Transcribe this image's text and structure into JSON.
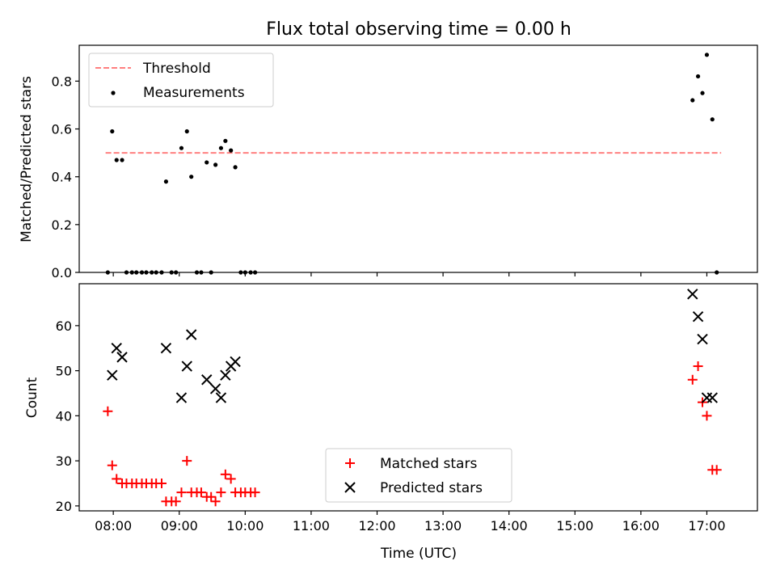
{
  "chart_data": [
    {
      "type": "scatter",
      "title": "Flux total observing time = 0.00 h",
      "xlabel": "",
      "ylabel": "Matched/Predicted stars",
      "xlim": [
        "07:29",
        "17:46"
      ],
      "ylim": [
        0,
        0.95
      ],
      "yticks": [
        0,
        0.2,
        0.4,
        0.6,
        0.8
      ],
      "ytick_labels": [
        "0.0",
        "0.2",
        "0.4",
        "0.6",
        "0.8"
      ],
      "legend_position": "top-left",
      "threshold": {
        "name": "Threshold",
        "value": 0.5,
        "x_range": [
          "07:53",
          "17:13"
        ],
        "color": "#ff7f7f",
        "style": "dashed"
      },
      "series": [
        {
          "name": "Measurements",
          "marker": "dot",
          "color": "#000000",
          "points": [
            [
              "07:55",
              0.0
            ],
            [
              "07:59",
              0.59
            ],
            [
              "08:03",
              0.47
            ],
            [
              "08:08",
              0.47
            ],
            [
              "08:12",
              0.0
            ],
            [
              "08:17",
              0.0
            ],
            [
              "08:21",
              0.0
            ],
            [
              "08:26",
              0.0
            ],
            [
              "08:30",
              0.0
            ],
            [
              "08:35",
              0.0
            ],
            [
              "08:39",
              0.0
            ],
            [
              "08:44",
              0.0
            ],
            [
              "08:48",
              0.38
            ],
            [
              "08:53",
              0.0
            ],
            [
              "08:57",
              0.0
            ],
            [
              "09:02",
              0.52
            ],
            [
              "09:07",
              0.59
            ],
            [
              "09:11",
              0.4
            ],
            [
              "09:16",
              0.0
            ],
            [
              "09:20",
              0.0
            ],
            [
              "09:25",
              0.46
            ],
            [
              "09:29",
              0.0
            ],
            [
              "09:33",
              0.45
            ],
            [
              "09:38",
              0.52
            ],
            [
              "09:42",
              0.55
            ],
            [
              "09:47",
              0.51
            ],
            [
              "09:51",
              0.44
            ],
            [
              "09:56",
              0.0
            ],
            [
              "10:00",
              0.0
            ],
            [
              "10:05",
              0.0
            ],
            [
              "10:09",
              0.0
            ],
            [
              "16:47",
              0.72
            ],
            [
              "16:52",
              0.82
            ],
            [
              "16:56",
              0.75
            ],
            [
              "17:00",
              0.91
            ],
            [
              "17:05",
              0.64
            ],
            [
              "17:09",
              0.0
            ]
          ]
        }
      ]
    },
    {
      "type": "scatter",
      "title": "",
      "xlabel": "Time (UTC)",
      "ylabel": "Count",
      "xlim": [
        "07:29",
        "17:46"
      ],
      "ylim": [
        18.9,
        69.3
      ],
      "yticks": [
        20,
        30,
        40,
        50,
        60
      ],
      "ytick_labels": [
        "20",
        "30",
        "40",
        "50",
        "60"
      ],
      "xticks": [
        "08:00",
        "09:00",
        "10:00",
        "11:00",
        "12:00",
        "13:00",
        "14:00",
        "15:00",
        "16:00",
        "17:00"
      ],
      "xtick_labels": [
        "08:00",
        "09:00",
        "10:00",
        "11:00",
        "12:00",
        "13:00",
        "14:00",
        "15:00",
        "16:00",
        "17:00"
      ],
      "legend_position": "lower-center",
      "series": [
        {
          "name": "Matched stars",
          "marker": "plus",
          "color": "#ff0000",
          "points": [
            [
              "07:55",
              41
            ],
            [
              "07:59",
              29
            ],
            [
              "08:03",
              26
            ],
            [
              "08:08",
              25
            ],
            [
              "08:12",
              25
            ],
            [
              "08:17",
              25
            ],
            [
              "08:21",
              25
            ],
            [
              "08:26",
              25
            ],
            [
              "08:30",
              25
            ],
            [
              "08:35",
              25
            ],
            [
              "08:39",
              25
            ],
            [
              "08:44",
              25
            ],
            [
              "08:48",
              21
            ],
            [
              "08:53",
              21
            ],
            [
              "08:57",
              21
            ],
            [
              "09:02",
              23
            ],
            [
              "09:07",
              30
            ],
            [
              "09:11",
              23
            ],
            [
              "09:16",
              23
            ],
            [
              "09:20",
              23
            ],
            [
              "09:25",
              22
            ],
            [
              "09:29",
              22
            ],
            [
              "09:33",
              21
            ],
            [
              "09:38",
              23
            ],
            [
              "09:42",
              27
            ],
            [
              "09:47",
              26
            ],
            [
              "09:51",
              23
            ],
            [
              "09:56",
              23
            ],
            [
              "10:00",
              23
            ],
            [
              "10:05",
              23
            ],
            [
              "10:09",
              23
            ],
            [
              "16:47",
              48
            ],
            [
              "16:52",
              51
            ],
            [
              "16:56",
              43
            ],
            [
              "17:00",
              40
            ],
            [
              "17:05",
              28
            ],
            [
              "17:09",
              28
            ]
          ]
        },
        {
          "name": "Predicted stars",
          "marker": "x",
          "color": "#000000",
          "points": [
            [
              "07:59",
              49
            ],
            [
              "08:03",
              55
            ],
            [
              "08:08",
              53
            ],
            [
              "08:48",
              55
            ],
            [
              "09:02",
              44
            ],
            [
              "09:07",
              51
            ],
            [
              "09:11",
              58
            ],
            [
              "09:25",
              48
            ],
            [
              "09:33",
              46
            ],
            [
              "09:38",
              44
            ],
            [
              "09:42",
              49
            ],
            [
              "09:47",
              51
            ],
            [
              "09:51",
              52
            ],
            [
              "16:47",
              67
            ],
            [
              "16:52",
              62
            ],
            [
              "16:56",
              57
            ],
            [
              "17:00",
              44
            ],
            [
              "17:05",
              44
            ]
          ]
        }
      ]
    }
  ]
}
